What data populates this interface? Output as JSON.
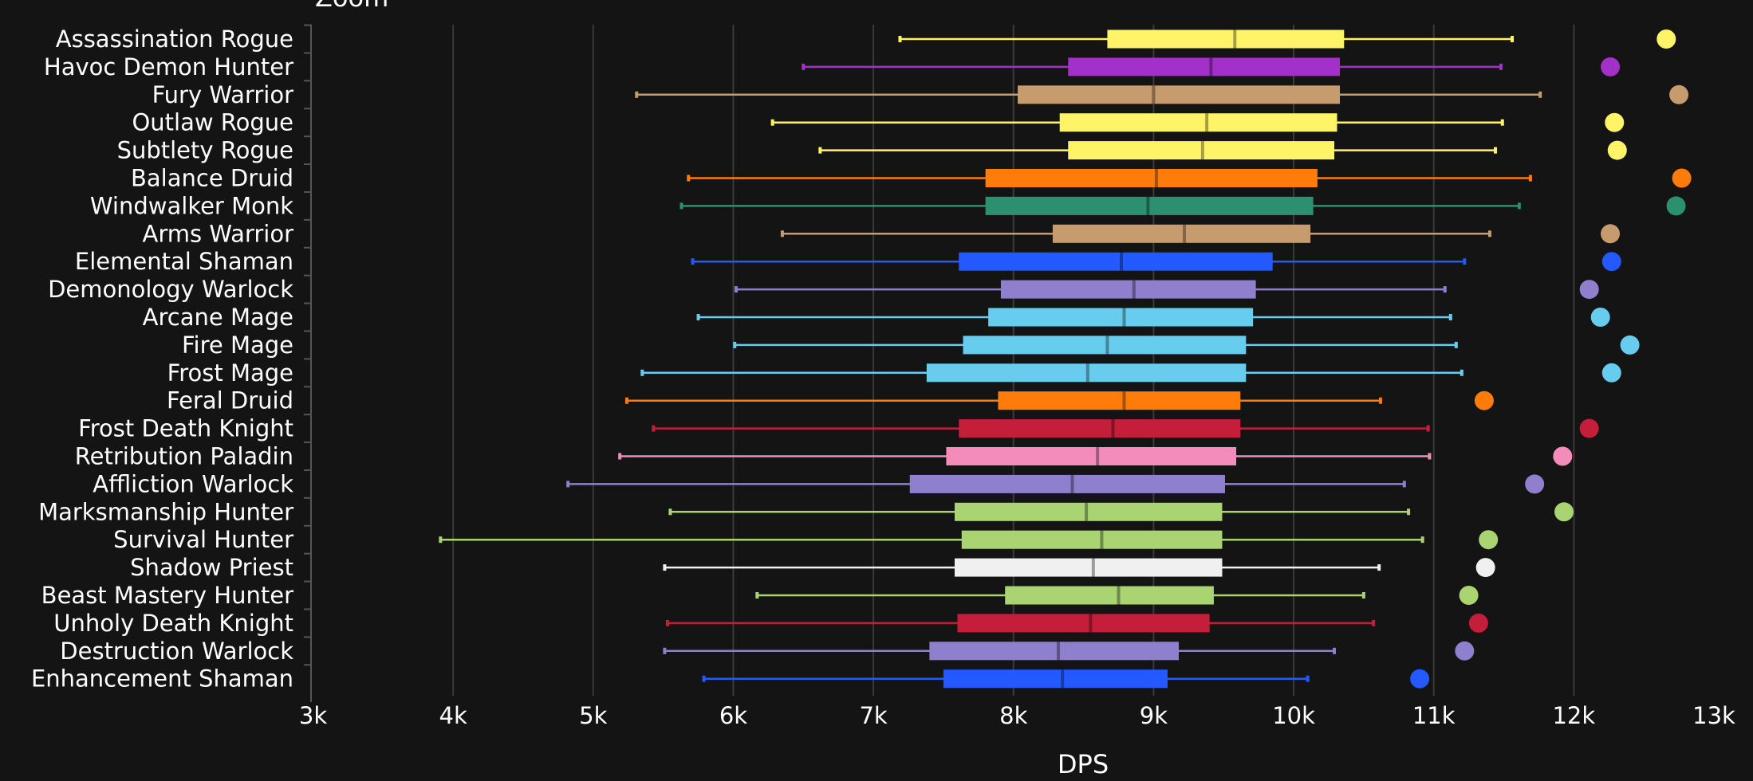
{
  "header": {
    "zoom_label": "Zoom"
  },
  "chart_data": {
    "type": "box",
    "orientation": "horizontal",
    "title": "",
    "xlabel": "DPS",
    "ylabel": "",
    "xlim": [
      3000,
      13000
    ],
    "xticks": [
      3000,
      4000,
      5000,
      6000,
      7000,
      8000,
      9000,
      10000,
      11000,
      12000,
      13000
    ],
    "xtick_labels": [
      "3k",
      "4k",
      "5k",
      "6k",
      "7k",
      "8k",
      "9k",
      "10k",
      "11k",
      "12k",
      "13k"
    ],
    "grid": "vertical",
    "legend": "none",
    "series": [
      {
        "name": "Assassination Rogue",
        "color": "#FFF468",
        "min": 7190,
        "q1": 8670,
        "median": 9580,
        "q3": 10360,
        "max": 11560,
        "outlier": 12660
      },
      {
        "name": "Havoc Demon Hunter",
        "color": "#A330C9",
        "min": 6500,
        "q1": 8390,
        "median": 9410,
        "q3": 10330,
        "max": 11480,
        "outlier": 12260
      },
      {
        "name": "Fury Warrior",
        "color": "#C69B6D",
        "min": 5310,
        "q1": 8030,
        "median": 9000,
        "q3": 10330,
        "max": 11760,
        "outlier": 12750
      },
      {
        "name": "Outlaw Rogue",
        "color": "#FFF468",
        "min": 6280,
        "q1": 8330,
        "median": 9380,
        "q3": 10310,
        "max": 11490,
        "outlier": 12290
      },
      {
        "name": "Subtlety Rogue",
        "color": "#FFF468",
        "min": 6620,
        "q1": 8390,
        "median": 9350,
        "q3": 10290,
        "max": 11440,
        "outlier": 12310
      },
      {
        "name": "Balance Druid",
        "color": "#FF7C0A",
        "min": 5680,
        "q1": 7800,
        "median": 9020,
        "q3": 10170,
        "max": 11690,
        "outlier": 12770
      },
      {
        "name": "Windwalker Monk",
        "color": "#2A9070",
        "min": 5630,
        "q1": 7800,
        "median": 8960,
        "q3": 10140,
        "max": 11610,
        "outlier": 12730
      },
      {
        "name": "Arms Warrior",
        "color": "#C69B6D",
        "min": 6350,
        "q1": 8280,
        "median": 9220,
        "q3": 10120,
        "max": 11400,
        "outlier": 12260
      },
      {
        "name": "Elemental Shaman",
        "color": "#2459FF",
        "min": 5710,
        "q1": 7610,
        "median": 8770,
        "q3": 9850,
        "max": 11220,
        "outlier": 12270
      },
      {
        "name": "Demonology Warlock",
        "color": "#8F7FCC",
        "min": 6020,
        "q1": 7910,
        "median": 8860,
        "q3": 9730,
        "max": 11080,
        "outlier": 12110
      },
      {
        "name": "Arcane Mage",
        "color": "#68CCEF",
        "min": 5750,
        "q1": 7820,
        "median": 8790,
        "q3": 9710,
        "max": 11120,
        "outlier": 12190
      },
      {
        "name": "Fire Mage",
        "color": "#68CCEF",
        "min": 6010,
        "q1": 7640,
        "median": 8670,
        "q3": 9660,
        "max": 11160,
        "outlier": 12400
      },
      {
        "name": "Frost Mage",
        "color": "#68CCEF",
        "min": 5350,
        "q1": 7380,
        "median": 8530,
        "q3": 9660,
        "max": 11200,
        "outlier": 12270
      },
      {
        "name": "Feral Druid",
        "color": "#FF7C0A",
        "min": 5240,
        "q1": 7890,
        "median": 8790,
        "q3": 9620,
        "max": 10620,
        "outlier": 11360
      },
      {
        "name": "Frost Death Knight",
        "color": "#C41E3A",
        "min": 5430,
        "q1": 7610,
        "median": 8710,
        "q3": 9620,
        "max": 10960,
        "outlier": 12110
      },
      {
        "name": "Retribution Paladin",
        "color": "#F48CBA",
        "min": 5190,
        "q1": 7520,
        "median": 8600,
        "q3": 9590,
        "max": 10970,
        "outlier": 11920
      },
      {
        "name": "Affliction Warlock",
        "color": "#8F7FCC",
        "min": 4820,
        "q1": 7260,
        "median": 8420,
        "q3": 9510,
        "max": 10790,
        "outlier": 11720
      },
      {
        "name": "Marksmanship Hunter",
        "color": "#AAD372",
        "min": 5550,
        "q1": 7580,
        "median": 8520,
        "q3": 9490,
        "max": 10820,
        "outlier": 11930
      },
      {
        "name": "Survival Hunter",
        "color": "#AAD372",
        "min": 3910,
        "q1": 7630,
        "median": 8630,
        "q3": 9490,
        "max": 10920,
        "outlier": 11390
      },
      {
        "name": "Shadow Priest",
        "color": "#F0F0F0",
        "min": 5510,
        "q1": 7580,
        "median": 8570,
        "q3": 9490,
        "max": 10610,
        "outlier": 11370
      },
      {
        "name": "Beast Mastery Hunter",
        "color": "#AAD372",
        "min": 6170,
        "q1": 7940,
        "median": 8750,
        "q3": 9430,
        "max": 10500,
        "outlier": 11250
      },
      {
        "name": "Unholy Death Knight",
        "color": "#C41E3A",
        "min": 5530,
        "q1": 7600,
        "median": 8550,
        "q3": 9400,
        "max": 10570,
        "outlier": 11320
      },
      {
        "name": "Destruction Warlock",
        "color": "#8F7FCC",
        "min": 5510,
        "q1": 7400,
        "median": 8320,
        "q3": 9180,
        "max": 10290,
        "outlier": 11220
      },
      {
        "name": "Enhancement Shaman",
        "color": "#2459FF",
        "min": 5790,
        "q1": 7500,
        "median": 8350,
        "q3": 9100,
        "max": 10100,
        "outlier": 10900
      }
    ]
  }
}
